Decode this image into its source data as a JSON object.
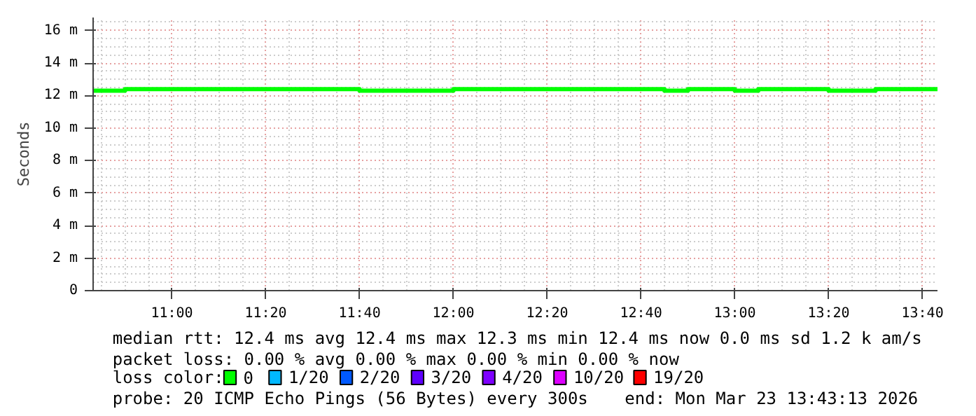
{
  "chart_data": {
    "type": "step",
    "ylabel": "Seconds",
    "x": [
      10.72,
      10.8333,
      11.6667,
      12.0,
      12.75,
      12.8333,
      13.0,
      13.0833,
      13.3333,
      13.5,
      13.72
    ],
    "series": [
      {
        "name": "0",
        "color": "#00ff00",
        "values": [
          12.3,
          12.4,
          12.3,
          12.4,
          12.3,
          12.4,
          12.3,
          12.4,
          12.3,
          12.4,
          12.4
        ]
      },
      {
        "name": "1/20",
        "color": "#00b8ff",
        "values": [
          null,
          null,
          null,
          null,
          null,
          null,
          null,
          null,
          null,
          null,
          null
        ]
      },
      {
        "name": "2/20",
        "color": "#0059ff",
        "values": [
          null,
          null,
          null,
          null,
          null,
          null,
          null,
          null,
          null,
          null,
          null
        ]
      },
      {
        "name": "3/20",
        "color": "#5e00ff",
        "values": [
          null,
          null,
          null,
          null,
          null,
          null,
          null,
          null,
          null,
          null,
          null
        ]
      },
      {
        "name": "4/20",
        "color": "#7e00ff",
        "values": [
          null,
          null,
          null,
          null,
          null,
          null,
          null,
          null,
          null,
          null,
          null
        ]
      },
      {
        "name": "10/20",
        "color": "#dd00ff",
        "values": [
          null,
          null,
          null,
          null,
          null,
          null,
          null,
          null,
          null,
          null,
          null
        ]
      },
      {
        "name": "19/20",
        "color": "#ff0000",
        "values": [
          null,
          null,
          null,
          null,
          null,
          null,
          null,
          null,
          null,
          null,
          null
        ]
      }
    ],
    "legend": "bottom",
    "legend_title": "loss color:",
    "xlim": [
      10.72,
      13.72
    ],
    "xticks": [
      {
        "value": 11.0,
        "label": "11:00"
      },
      {
        "value": 11.3333,
        "label": "11:20"
      },
      {
        "value": 11.6667,
        "label": "11:40"
      },
      {
        "value": 12.0,
        "label": "12:00"
      },
      {
        "value": 12.3333,
        "label": "12:20"
      },
      {
        "value": 12.6667,
        "label": "12:40"
      },
      {
        "value": 13.0,
        "label": "13:00"
      },
      {
        "value": 13.3333,
        "label": "13:20"
      },
      {
        "value": 13.6667,
        "label": "13:40"
      }
    ],
    "ylim": [
      0,
      16.8
    ],
    "yticks": [
      0,
      {
        "value": 2,
        "label": "2 m"
      },
      {
        "value": 4,
        "label": "4 m"
      },
      {
        "value": 6,
        "label": "6 m"
      },
      {
        "value": 8,
        "label": "8 m"
      },
      {
        "value": 10,
        "label": "10 m"
      },
      {
        "value": 12,
        "label": "12 m"
      },
      {
        "value": 14,
        "label": "14 m"
      },
      {
        "value": 16,
        "label": "16 m"
      }
    ],
    "grid": true,
    "annotations": [
      "median rtt:  12.4 ms avg  12.4 ms max  12.3 ms min  12.4 ms now  0.0 ms sd  1.2 k am/s",
      "packet loss: 0.00 % avg  0.00 % max  0.00 % min  0.00 % now",
      "probe:       20 ICMP Echo Pings (56 Bytes) every 300s",
      "end: Mon Mar 23 13:43:13 2026"
    ]
  }
}
